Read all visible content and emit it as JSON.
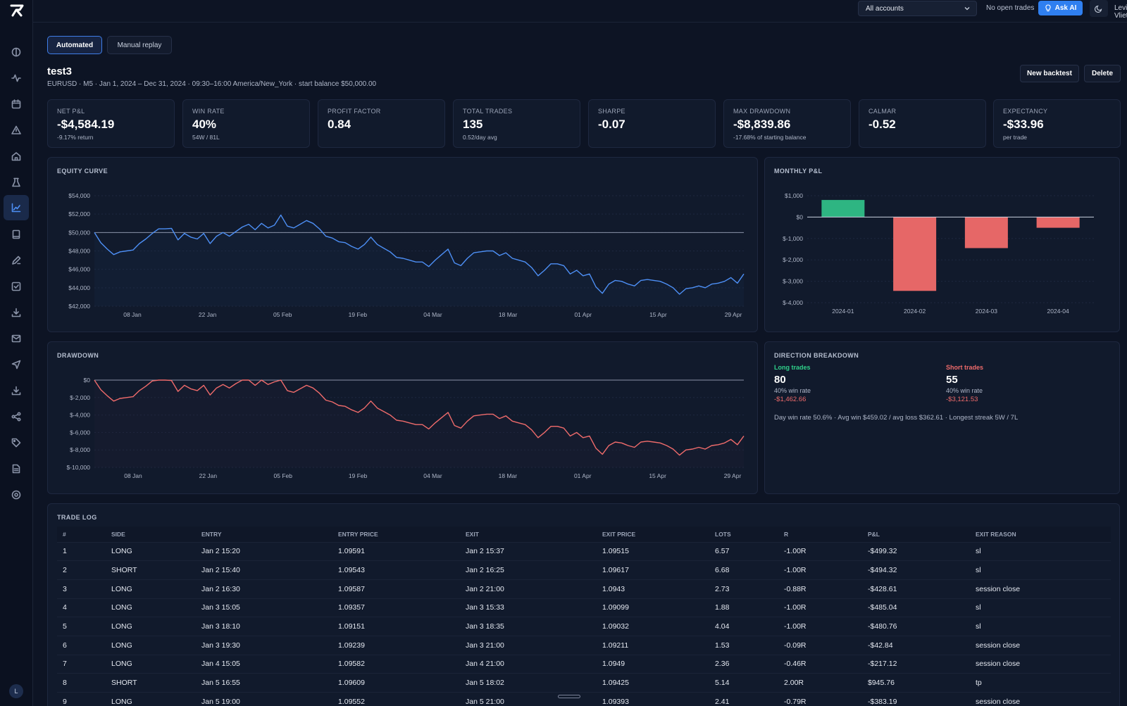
{
  "topbar": {
    "account_select": "All accounts",
    "status": "No open trades",
    "ask_ai_label": "Ask AI",
    "user_name": "Levinio Vliet"
  },
  "sidebar": {
    "avatar_initial": "L",
    "icons": [
      "dashboard-icon",
      "activity-icon",
      "calendar-icon",
      "alert-icon",
      "home-icon",
      "flask-icon",
      "chart-icon",
      "notebook-icon",
      "pen-icon",
      "checklist-icon",
      "download-icon",
      "mail-icon",
      "send-icon",
      "import-icon",
      "share-icon",
      "tag-icon",
      "document-icon",
      "target-icon"
    ],
    "active_index": 6
  },
  "tabs": {
    "automated": "Automated",
    "manual": "Manual replay"
  },
  "backtest": {
    "title": "test3",
    "subtitle": "EURUSD · M5 · Jan 1, 2024 – Dec 31, 2024 · 09:30–16:00 America/New_York · start balance $50,000.00",
    "new_label": "New backtest",
    "delete_label": "Delete"
  },
  "stats": [
    {
      "label": "NET P&L",
      "value": "-$4,584.19",
      "sub": "-9.17% return"
    },
    {
      "label": "WIN RATE",
      "value": "40%",
      "sub": "54W / 81L"
    },
    {
      "label": "PROFIT FACTOR",
      "value": "0.84",
      "sub": ""
    },
    {
      "label": "TOTAL TRADES",
      "value": "135",
      "sub": "0.52/day avg"
    },
    {
      "label": "SHARPE",
      "value": "-0.07",
      "sub": ""
    },
    {
      "label": "MAX DRAWDOWN",
      "value": "-$8,839.86",
      "sub": "-17.68% of starting balance"
    },
    {
      "label": "CALMAR",
      "value": "-0.52",
      "sub": ""
    },
    {
      "label": "EXPECTANCY",
      "value": "-$33.96",
      "sub": "per trade"
    }
  ],
  "chart_data": [
    {
      "type": "line",
      "title": "EQUITY CURVE",
      "x_ticks": [
        "08 Jan",
        "22 Jan",
        "05 Feb",
        "19 Feb",
        "04 Mar",
        "18 Mar",
        "01 Apr",
        "15 Apr",
        "29 Apr"
      ],
      "y_ticks": [
        "$54,000",
        "$52,000",
        "$50,000",
        "$48,000",
        "$46,000",
        "$44,000",
        "$42,000"
      ],
      "ylim": [
        42000,
        54000
      ],
      "baseline": 50000,
      "color": "#4d8ff5",
      "values": [
        50000,
        48900,
        48200,
        47600,
        47900,
        48000,
        48100,
        48800,
        49300,
        49900,
        50400,
        50400,
        50450,
        49200,
        49900,
        49500,
        49300,
        49900,
        48800,
        49600,
        50000,
        49600,
        50100,
        50600,
        50900,
        50300,
        51000,
        50500,
        50800,
        51900,
        50700,
        50500,
        50900,
        51300,
        51000,
        50400,
        49600,
        49400,
        49000,
        48900,
        48500,
        48200,
        48700,
        49500,
        48700,
        48300,
        47900,
        47300,
        47200,
        47000,
        46800,
        46800,
        46300,
        47000,
        47600,
        48200,
        46700,
        46400,
        47200,
        47800,
        47900,
        48000,
        48000,
        47500,
        47800,
        47200,
        47000,
        46800,
        46200,
        45300,
        45900,
        46600,
        46600,
        46400,
        45500,
        45900,
        45300,
        45500,
        44100,
        43400,
        44400,
        44800,
        44700,
        44400,
        44200,
        44800,
        44900,
        44800,
        44700,
        44400,
        44000,
        43300,
        43900,
        44000,
        44200,
        44000,
        44400,
        44500,
        44700,
        45100,
        44500,
        45500
      ]
    },
    {
      "type": "bar",
      "title": "MONTHLY P&L",
      "categories": [
        "2024-01",
        "2024-02",
        "2024-03",
        "2024-04"
      ],
      "values": [
        800,
        -3450,
        -1450,
        -500
      ],
      "y_ticks": [
        "$1,000",
        "$0",
        "$-1,000",
        "$-2,000",
        "$-3,000",
        "$-4,000"
      ],
      "ylim": [
        -4000,
        1000
      ],
      "pos_color": "#2eb582",
      "neg_color": "#e66767"
    },
    {
      "type": "line",
      "title": "DRAWDOWN",
      "x_ticks": [
        "08 Jan",
        "22 Jan",
        "05 Feb",
        "19 Feb",
        "04 Mar",
        "18 Mar",
        "01 Apr",
        "15 Apr",
        "29 Apr"
      ],
      "y_ticks": [
        "$0",
        "$-2,000",
        "$-4,000",
        "$-6,000",
        "$-8,000",
        "$-10,000"
      ],
      "ylim": [
        -10000,
        0
      ],
      "baseline": 0,
      "color": "#ef6b6b",
      "values": [
        0,
        -1100,
        -1800,
        -2400,
        -2100,
        -2000,
        -1900,
        -1200,
        -700,
        -100,
        0,
        0,
        -50,
        -1300,
        -600,
        -1000,
        -1200,
        -600,
        -1700,
        -900,
        -500,
        -900,
        -400,
        0,
        0,
        -600,
        0,
        -500,
        -200,
        0,
        -1200,
        -1400,
        -1000,
        -600,
        -900,
        -1500,
        -2300,
        -2500,
        -2900,
        -3000,
        -3400,
        -3700,
        -3200,
        -2400,
        -3200,
        -3600,
        -4000,
        -4600,
        -4700,
        -4900,
        -5100,
        -5100,
        -5600,
        -4900,
        -4300,
        -3700,
        -5200,
        -5500,
        -4700,
        -4100,
        -4000,
        -3900,
        -3900,
        -4400,
        -4100,
        -4700,
        -4900,
        -5100,
        -5700,
        -6600,
        -6000,
        -5300,
        -5300,
        -5500,
        -6400,
        -6000,
        -6600,
        -6400,
        -7800,
        -8500,
        -7500,
        -7100,
        -7200,
        -7500,
        -7700,
        -7100,
        -7000,
        -7100,
        -7200,
        -7500,
        -7900,
        -8600,
        -8000,
        -7900,
        -7700,
        -7900,
        -7500,
        -7400,
        -7200,
        -6800,
        -7400,
        -6400
      ]
    }
  ],
  "direction": {
    "title": "DIRECTION BREAKDOWN",
    "long": {
      "label": "Long trades",
      "count": "80",
      "rate": "40% win rate",
      "pnl": "-$1,462.66",
      "color": "#2fd08a"
    },
    "short": {
      "label": "Short trades",
      "count": "55",
      "rate": "40% win rate",
      "pnl": "-$3,121.53",
      "color": "#ef6b6b"
    },
    "summary": "Day win rate 50.6% · Avg win $459.02 / avg loss $362.61 · Longest streak 5W / 7L"
  },
  "trade_log": {
    "title": "TRADE LOG",
    "columns": [
      "#",
      "SIDE",
      "ENTRY",
      "ENTRY PRICE",
      "EXIT",
      "EXIT PRICE",
      "LOTS",
      "R",
      "P&L",
      "EXIT REASON"
    ],
    "rows": [
      [
        "1",
        "LONG",
        "Jan 2 15:20",
        "1.09591",
        "Jan 2 15:37",
        "1.09515",
        "6.57",
        "-1.00R",
        "-$499.32",
        "sl"
      ],
      [
        "2",
        "SHORT",
        "Jan 2 15:40",
        "1.09543",
        "Jan 2 16:25",
        "1.09617",
        "6.68",
        "-1.00R",
        "-$494.32",
        "sl"
      ],
      [
        "3",
        "LONG",
        "Jan 2 16:30",
        "1.09587",
        "Jan 2 21:00",
        "1.0943",
        "2.73",
        "-0.88R",
        "-$428.61",
        "session close"
      ],
      [
        "4",
        "LONG",
        "Jan 3 15:05",
        "1.09357",
        "Jan 3 15:33",
        "1.09099",
        "1.88",
        "-1.00R",
        "-$485.04",
        "sl"
      ],
      [
        "5",
        "LONG",
        "Jan 3 18:10",
        "1.09151",
        "Jan 3 18:35",
        "1.09032",
        "4.04",
        "-1.00R",
        "-$480.76",
        "sl"
      ],
      [
        "6",
        "LONG",
        "Jan 3 19:30",
        "1.09239",
        "Jan 3 21:00",
        "1.09211",
        "1.53",
        "-0.09R",
        "-$42.84",
        "session close"
      ],
      [
        "7",
        "LONG",
        "Jan 4 15:05",
        "1.09582",
        "Jan 4 21:00",
        "1.0949",
        "2.36",
        "-0.46R",
        "-$217.12",
        "session close"
      ],
      [
        "8",
        "SHORT",
        "Jan 5 16:55",
        "1.09609",
        "Jan 5 18:02",
        "1.09425",
        "5.14",
        "2.00R",
        "$945.76",
        "tp"
      ],
      [
        "9",
        "LONG",
        "Jan 5 19:00",
        "1.09552",
        "Jan 5 21:00",
        "1.09393",
        "2.41",
        "-0.79R",
        "-$383.19",
        "session close"
      ]
    ]
  }
}
